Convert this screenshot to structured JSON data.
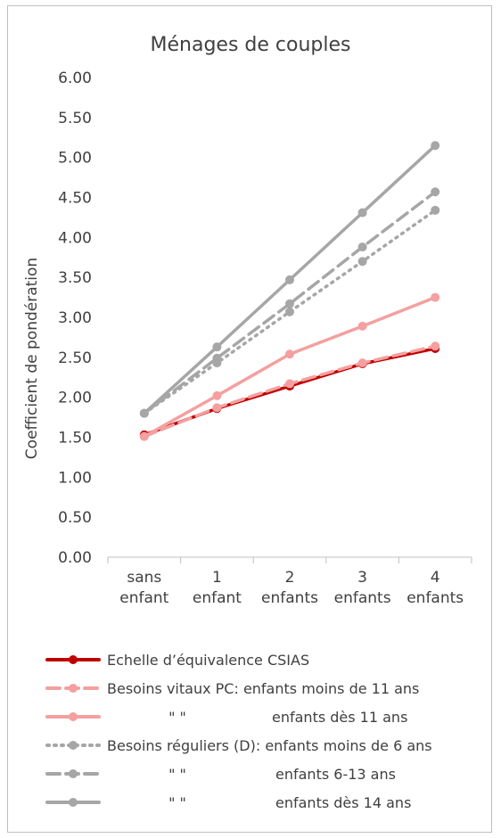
{
  "chart_data": {
    "type": "line",
    "title": "Ménages de couples",
    "ylabel": "Coefficient de pondération",
    "xlabel": "",
    "ylim": [
      0,
      6
    ],
    "yticks": [
      "0.00",
      "0.50",
      "1.00",
      "1.50",
      "2.00",
      "2.50",
      "3.00",
      "3.50",
      "4.00",
      "4.50",
      "5.00",
      "5.50",
      "6.00"
    ],
    "grid": false,
    "legend_position": "bottom",
    "categories": [
      [
        "sans",
        "enfant"
      ],
      [
        "1",
        "enfant"
      ],
      [
        "2",
        "enfants"
      ],
      [
        "3",
        "enfants"
      ],
      [
        "4",
        "enfants"
      ]
    ],
    "series": [
      {
        "name": "Echelle d’équivalence CSIAS",
        "legend_prefix": "",
        "legend_suffix": "",
        "values": [
          1.53,
          1.86,
          2.14,
          2.42,
          2.61
        ],
        "color": "#c00000",
        "dash": "solid"
      },
      {
        "name": "Besoins vitaux PC: enfants moins de 11 ans",
        "legend_prefix": "",
        "legend_suffix": "",
        "values": [
          1.51,
          1.87,
          2.17,
          2.43,
          2.64
        ],
        "color": "#f4a0a0",
        "dash": "dashed"
      },
      {
        "name": "enfants dès 11 ans",
        "legend_prefix": "\"  \"",
        "legend_suffix": "",
        "values": [
          1.51,
          2.02,
          2.54,
          2.89,
          3.25
        ],
        "color": "#f4a0a0",
        "dash": "solid"
      },
      {
        "name": "Besoins réguliers (D):  enfants moins de 6 ans",
        "legend_prefix": "",
        "legend_suffix": "",
        "values": [
          1.8,
          2.43,
          3.07,
          3.7,
          4.34
        ],
        "color": "#a6a6a6",
        "dash": "dotted"
      },
      {
        "name": "enfants 6-13 ans",
        "legend_prefix": "\"  \"",
        "legend_suffix": "",
        "values": [
          1.8,
          2.49,
          3.17,
          3.88,
          4.57
        ],
        "color": "#a6a6a6",
        "dash": "dashed"
      },
      {
        "name": "enfants dès 14 ans",
        "legend_prefix": "\"  \"",
        "legend_suffix": "",
        "values": [
          1.8,
          2.63,
          3.47,
          4.31,
          5.15
        ],
        "color": "#a6a6a6",
        "dash": "solid"
      }
    ]
  }
}
